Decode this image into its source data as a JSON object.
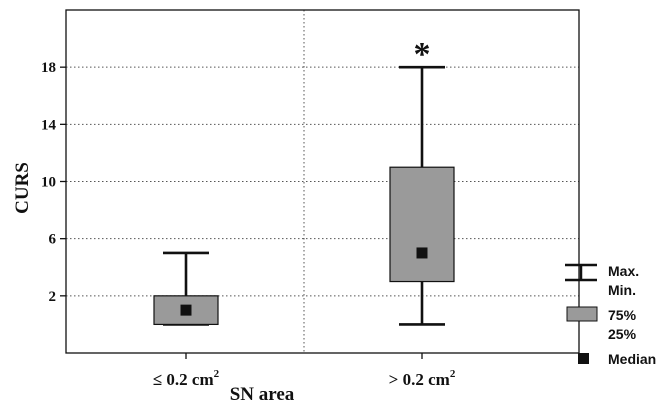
{
  "chart_data": {
    "type": "box",
    "ylabel": "CURS",
    "xlabel": "SN area",
    "ylim": [
      -2,
      22
    ],
    "yticks": [
      2,
      6,
      10,
      14,
      18
    ],
    "grid": true,
    "categories": [
      {
        "base": "≤ 0.2 cm",
        "sup": "2"
      },
      {
        "base": "> 0.2 cm",
        "sup": "2"
      }
    ],
    "boxes": [
      {
        "min": 0,
        "q1": 0,
        "median": 1,
        "q3": 2,
        "max": 5,
        "annotation": ""
      },
      {
        "min": 0,
        "q1": 3,
        "median": 5,
        "q3": 11,
        "max": 18,
        "annotation": "*"
      }
    ],
    "colors": {
      "box": "#9a9a9a",
      "median": "#111111",
      "grid": "#555555",
      "axes": "#111111"
    },
    "legend": {
      "position": "right",
      "items": [
        {
          "symbol": "whisker",
          "labels": [
            "Max.",
            "Min."
          ]
        },
        {
          "symbol": "box",
          "labels": [
            "75%",
            "25%"
          ]
        },
        {
          "symbol": "median",
          "labels": [
            "Median"
          ]
        }
      ]
    }
  }
}
